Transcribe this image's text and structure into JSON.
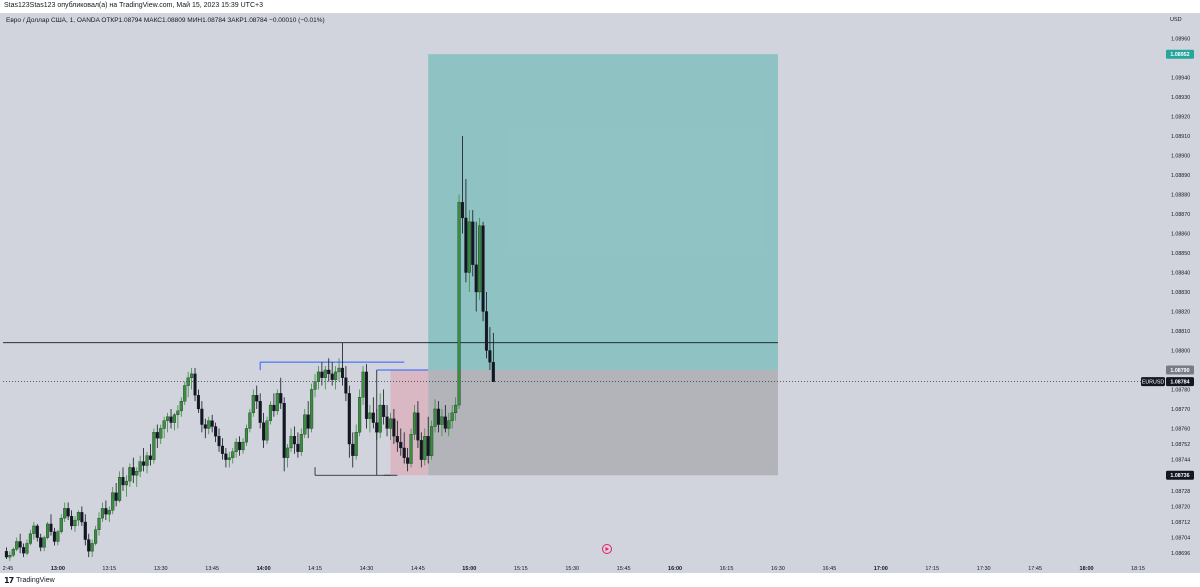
{
  "header": {
    "published_text": "Stas123Stas123 опубликовал(а) на TradingView.com, Май 15, 2023 15:39 UTC+3"
  },
  "symbol_info": {
    "text": "Евро / Доллар США, 1, OANDA  ОТКР1.08794  МАКС1.08809  МИН1.08784  ЗАКР1.08784  −0.00010 (−0.01%)"
  },
  "price_scale": {
    "currency": "USD",
    "ticks": [
      "1.08960",
      "1.08952",
      "1.08940",
      "1.08930",
      "1.08920",
      "1.08910",
      "1.08900",
      "1.08890",
      "1.08880",
      "1.08870",
      "1.08860",
      "1.08850",
      "1.08840",
      "1.08830",
      "1.08820",
      "1.08810",
      "1.08800",
      "1.08790",
      "1.08780",
      "1.08770",
      "1.08760",
      "1.08752",
      "1.08744",
      "1.08736",
      "1.08728",
      "1.08720",
      "1.08712",
      "1.08704",
      "1.08696"
    ],
    "badges": {
      "target": {
        "label": "1.08952",
        "color": "#26a69a"
      },
      "entry": {
        "label": "1.08790",
        "color": "#787b86"
      },
      "current": {
        "symbol": "EURUSD",
        "label": "1.08784",
        "color": "#131722"
      },
      "stop": {
        "label": "1.08736",
        "color": "#131722"
      }
    }
  },
  "time_axis": {
    "labels": [
      "2:45",
      "13:00",
      "13:15",
      "13:30",
      "13:45",
      "14:00",
      "14:15",
      "14:30",
      "14:45",
      "15:00",
      "15:15",
      "15:30",
      "15:45",
      "16:00",
      "16:15",
      "16:30",
      "16:45",
      "17:00",
      "17:15",
      "17:30",
      "17:45",
      "18:00",
      "18:15"
    ],
    "bold_labels": [
      "13:00",
      "14:00",
      "15:00",
      "16:00",
      "17:00",
      "18:00"
    ]
  },
  "footer": {
    "logo_mark": "17",
    "brand": "TradingView"
  },
  "colors": {
    "background": "#d1d4dc",
    "bull": "#388e3c",
    "bear": "#131722",
    "target_zone": "#26a69a",
    "stop_zone": "#808080",
    "entry_zone": "#e0a0b0",
    "level_line": "#2962ff"
  },
  "chart_data": {
    "type": "candlestick",
    "symbol": "EURUSD",
    "timeframe": "1",
    "ylim": [
      1.08692,
      1.08968
    ],
    "x_range": [
      "12:44",
      "18:22"
    ],
    "series": [
      {
        "open": 1.08697,
        "high": 1.08699,
        "low": 1.08693,
        "close": 1.08694
      },
      {
        "open": 1.08694,
        "high": 1.08697,
        "low": 1.08692,
        "close": 1.08695
      },
      {
        "open": 1.08695,
        "high": 1.08699,
        "low": 1.08694,
        "close": 1.08698
      },
      {
        "open": 1.08698,
        "high": 1.08704,
        "low": 1.08697,
        "close": 1.08702
      },
      {
        "open": 1.08702,
        "high": 1.08706,
        "low": 1.08696,
        "close": 1.08699
      },
      {
        "open": 1.08699,
        "high": 1.08701,
        "low": 1.08694,
        "close": 1.08696
      },
      {
        "open": 1.08696,
        "high": 1.08703,
        "low": 1.08695,
        "close": 1.08701
      },
      {
        "open": 1.08701,
        "high": 1.08708,
        "low": 1.087,
        "close": 1.08706
      },
      {
        "open": 1.08706,
        "high": 1.08712,
        "low": 1.08703,
        "close": 1.0871
      },
      {
        "open": 1.0871,
        "high": 1.08711,
        "low": 1.08702,
        "close": 1.08704
      },
      {
        "open": 1.08704,
        "high": 1.08706,
        "low": 1.08697,
        "close": 1.08699
      },
      {
        "open": 1.08699,
        "high": 1.08705,
        "low": 1.08697,
        "close": 1.08704
      },
      {
        "open": 1.08704,
        "high": 1.08712,
        "low": 1.08703,
        "close": 1.08711
      },
      {
        "open": 1.08711,
        "high": 1.08716,
        "low": 1.08705,
        "close": 1.08707
      },
      {
        "open": 1.08707,
        "high": 1.08709,
        "low": 1.087,
        "close": 1.08702
      },
      {
        "open": 1.08702,
        "high": 1.08708,
        "low": 1.087,
        "close": 1.08707
      },
      {
        "open": 1.08707,
        "high": 1.08716,
        "low": 1.08706,
        "close": 1.08714
      },
      {
        "open": 1.08714,
        "high": 1.08722,
        "low": 1.08712,
        "close": 1.08719
      },
      {
        "open": 1.08719,
        "high": 1.08722,
        "low": 1.08713,
        "close": 1.08715
      },
      {
        "open": 1.08715,
        "high": 1.08718,
        "low": 1.08708,
        "close": 1.0871
      },
      {
        "open": 1.0871,
        "high": 1.08715,
        "low": 1.08707,
        "close": 1.08713
      },
      {
        "open": 1.08713,
        "high": 1.08718,
        "low": 1.0871,
        "close": 1.08717
      },
      {
        "open": 1.08717,
        "high": 1.0872,
        "low": 1.0871,
        "close": 1.08712
      },
      {
        "open": 1.08712,
        "high": 1.08716,
        "low": 1.087,
        "close": 1.08703
      },
      {
        "open": 1.08703,
        "high": 1.08706,
        "low": 1.08694,
        "close": 1.08697
      },
      {
        "open": 1.08697,
        "high": 1.08703,
        "low": 1.08694,
        "close": 1.08701
      },
      {
        "open": 1.08701,
        "high": 1.0871,
        "low": 1.087,
        "close": 1.08708
      },
      {
        "open": 1.08708,
        "high": 1.08717,
        "low": 1.08705,
        "close": 1.08714
      },
      {
        "open": 1.08714,
        "high": 1.08722,
        "low": 1.08712,
        "close": 1.08719
      },
      {
        "open": 1.08719,
        "high": 1.08723,
        "low": 1.08713,
        "close": 1.08716
      },
      {
        "open": 1.08716,
        "high": 1.0872,
        "low": 1.08712,
        "close": 1.08718
      },
      {
        "open": 1.08718,
        "high": 1.0873,
        "low": 1.08716,
        "close": 1.08727
      },
      {
        "open": 1.08727,
        "high": 1.08732,
        "low": 1.0872,
        "close": 1.08723
      },
      {
        "open": 1.08723,
        "high": 1.08738,
        "low": 1.08722,
        "close": 1.08735
      },
      {
        "open": 1.08735,
        "high": 1.0874,
        "low": 1.08728,
        "close": 1.08731
      },
      {
        "open": 1.08731,
        "high": 1.08736,
        "low": 1.08725,
        "close": 1.08733
      },
      {
        "open": 1.08733,
        "high": 1.08742,
        "low": 1.0873,
        "close": 1.0874
      },
      {
        "open": 1.0874,
        "high": 1.08745,
        "low": 1.08732,
        "close": 1.08736
      },
      {
        "open": 1.08736,
        "high": 1.0874,
        "low": 1.0873,
        "close": 1.08738
      },
      {
        "open": 1.08738,
        "high": 1.08746,
        "low": 1.08735,
        "close": 1.08743
      },
      {
        "open": 1.08743,
        "high": 1.0875,
        "low": 1.08738,
        "close": 1.08741
      },
      {
        "open": 1.08741,
        "high": 1.08748,
        "low": 1.08737,
        "close": 1.08746
      },
      {
        "open": 1.08746,
        "high": 1.08752,
        "low": 1.08741,
        "close": 1.08744
      },
      {
        "open": 1.08744,
        "high": 1.0876,
        "low": 1.08742,
        "close": 1.08758
      },
      {
        "open": 1.08758,
        "high": 1.08762,
        "low": 1.0875,
        "close": 1.08755
      },
      {
        "open": 1.08755,
        "high": 1.08762,
        "low": 1.08752,
        "close": 1.0876
      },
      {
        "open": 1.0876,
        "high": 1.08766,
        "low": 1.08755,
        "close": 1.08764
      },
      {
        "open": 1.08764,
        "high": 1.08768,
        "low": 1.08758,
        "close": 1.08766
      },
      {
        "open": 1.08766,
        "high": 1.0877,
        "low": 1.0876,
        "close": 1.08763
      },
      {
        "open": 1.08763,
        "high": 1.08768,
        "low": 1.08759,
        "close": 1.08767
      },
      {
        "open": 1.08767,
        "high": 1.08772,
        "low": 1.0876,
        "close": 1.08769
      },
      {
        "open": 1.08769,
        "high": 1.08776,
        "low": 1.08766,
        "close": 1.08774
      },
      {
        "open": 1.08774,
        "high": 1.08784,
        "low": 1.08772,
        "close": 1.08782
      },
      {
        "open": 1.08782,
        "high": 1.08789,
        "low": 1.08776,
        "close": 1.08786
      },
      {
        "open": 1.08786,
        "high": 1.08791,
        "low": 1.0878,
        "close": 1.08788
      },
      {
        "open": 1.08788,
        "high": 1.08791,
        "low": 1.08774,
        "close": 1.08777
      },
      {
        "open": 1.08777,
        "high": 1.0878,
        "low": 1.08768,
        "close": 1.0877
      },
      {
        "open": 1.0877,
        "high": 1.08774,
        "low": 1.08758,
        "close": 1.08762
      },
      {
        "open": 1.08762,
        "high": 1.08765,
        "low": 1.08755,
        "close": 1.0876
      },
      {
        "open": 1.0876,
        "high": 1.08766,
        "low": 1.08757,
        "close": 1.08764
      },
      {
        "open": 1.08764,
        "high": 1.08767,
        "low": 1.08758,
        "close": 1.08761
      },
      {
        "open": 1.08761,
        "high": 1.08763,
        "low": 1.08753,
        "close": 1.08756
      },
      {
        "open": 1.08756,
        "high": 1.0876,
        "low": 1.08748,
        "close": 1.08751
      },
      {
        "open": 1.08751,
        "high": 1.08755,
        "low": 1.08744,
        "close": 1.08747
      },
      {
        "open": 1.08747,
        "high": 1.0875,
        "low": 1.0874,
        "close": 1.08744
      },
      {
        "open": 1.08744,
        "high": 1.08748,
        "low": 1.0874,
        "close": 1.08745
      },
      {
        "open": 1.08745,
        "high": 1.0875,
        "low": 1.08742,
        "close": 1.08748
      },
      {
        "open": 1.08748,
        "high": 1.08755,
        "low": 1.08745,
        "close": 1.08753
      },
      {
        "open": 1.08753,
        "high": 1.08756,
        "low": 1.08746,
        "close": 1.08749
      },
      {
        "open": 1.08749,
        "high": 1.08755,
        "low": 1.08747,
        "close": 1.08753
      },
      {
        "open": 1.08753,
        "high": 1.08762,
        "low": 1.08751,
        "close": 1.0876
      },
      {
        "open": 1.0876,
        "high": 1.0877,
        "low": 1.08758,
        "close": 1.08768
      },
      {
        "open": 1.08768,
        "high": 1.0878,
        "low": 1.08766,
        "close": 1.08777
      },
      {
        "open": 1.08777,
        "high": 1.08782,
        "low": 1.0877,
        "close": 1.08774
      },
      {
        "open": 1.08774,
        "high": 1.08778,
        "low": 1.0876,
        "close": 1.08763
      },
      {
        "open": 1.08763,
        "high": 1.08768,
        "low": 1.0875,
        "close": 1.08754
      },
      {
        "open": 1.08754,
        "high": 1.08766,
        "low": 1.08752,
        "close": 1.08764
      },
      {
        "open": 1.08764,
        "high": 1.08774,
        "low": 1.08762,
        "close": 1.08772
      },
      {
        "open": 1.08772,
        "high": 1.08778,
        "low": 1.08766,
        "close": 1.08769
      },
      {
        "open": 1.08769,
        "high": 1.0878,
        "low": 1.08767,
        "close": 1.08778
      },
      {
        "open": 1.08778,
        "high": 1.08786,
        "low": 1.0877,
        "close": 1.08773
      },
      {
        "open": 1.08773,
        "high": 1.08776,
        "low": 1.08738,
        "close": 1.08745
      },
      {
        "open": 1.08745,
        "high": 1.08752,
        "low": 1.0874,
        "close": 1.0875
      },
      {
        "open": 1.0875,
        "high": 1.0876,
        "low": 1.08748,
        "close": 1.08756
      },
      {
        "open": 1.08756,
        "high": 1.08761,
        "low": 1.08747,
        "close": 1.08752
      },
      {
        "open": 1.08752,
        "high": 1.08758,
        "low": 1.08745,
        "close": 1.08748
      },
      {
        "open": 1.08748,
        "high": 1.0876,
        "low": 1.08746,
        "close": 1.08757
      },
      {
        "open": 1.08757,
        "high": 1.0877,
        "low": 1.08755,
        "close": 1.08767
      },
      {
        "open": 1.08767,
        "high": 1.08774,
        "low": 1.08755,
        "close": 1.0876
      },
      {
        "open": 1.0876,
        "high": 1.08783,
        "low": 1.08758,
        "close": 1.0878
      },
      {
        "open": 1.0878,
        "high": 1.08788,
        "low": 1.08776,
        "close": 1.08784
      },
      {
        "open": 1.08784,
        "high": 1.08792,
        "low": 1.0878,
        "close": 1.08789
      },
      {
        "open": 1.08789,
        "high": 1.08794,
        "low": 1.08782,
        "close": 1.08786
      },
      {
        "open": 1.08786,
        "high": 1.08792,
        "low": 1.0878,
        "close": 1.0879
      },
      {
        "open": 1.0879,
        "high": 1.08796,
        "low": 1.08784,
        "close": 1.08788
      },
      {
        "open": 1.08788,
        "high": 1.08794,
        "low": 1.08782,
        "close": 1.08785
      },
      {
        "open": 1.08785,
        "high": 1.08792,
        "low": 1.0878,
        "close": 1.08789
      },
      {
        "open": 1.08789,
        "high": 1.08796,
        "low": 1.08784,
        "close": 1.08791
      },
      {
        "open": 1.08791,
        "high": 1.08804,
        "low": 1.08782,
        "close": 1.08786
      },
      {
        "open": 1.08786,
        "high": 1.08792,
        "low": 1.08774,
        "close": 1.08778
      },
      {
        "open": 1.08778,
        "high": 1.08782,
        "low": 1.08745,
        "close": 1.08752
      },
      {
        "open": 1.08752,
        "high": 1.08758,
        "low": 1.0874,
        "close": 1.08746
      },
      {
        "open": 1.08746,
        "high": 1.08762,
        "low": 1.08744,
        "close": 1.08758
      },
      {
        "open": 1.08758,
        "high": 1.0878,
        "low": 1.08756,
        "close": 1.08776
      },
      {
        "open": 1.08776,
        "high": 1.08792,
        "low": 1.08772,
        "close": 1.08789
      },
      {
        "open": 1.08789,
        "high": 1.08793,
        "low": 1.0876,
        "close": 1.08765
      },
      {
        "open": 1.08765,
        "high": 1.08772,
        "low": 1.08758,
        "close": 1.08768
      },
      {
        "open": 1.08768,
        "high": 1.08776,
        "low": 1.0876,
        "close": 1.08763
      },
      {
        "open": 1.08763,
        "high": 1.0877,
        "low": 1.08754,
        "close": 1.08758
      },
      {
        "open": 1.08758,
        "high": 1.08778,
        "low": 1.08755,
        "close": 1.08772
      },
      {
        "open": 1.08772,
        "high": 1.0878,
        "low": 1.08762,
        "close": 1.08766
      },
      {
        "open": 1.08766,
        "high": 1.08772,
        "low": 1.08756,
        "close": 1.0876
      },
      {
        "open": 1.0876,
        "high": 1.08768,
        "low": 1.08754,
        "close": 1.08765
      },
      {
        "open": 1.08765,
        "high": 1.0877,
        "low": 1.08752,
        "close": 1.08756
      },
      {
        "open": 1.08756,
        "high": 1.08764,
        "low": 1.08748,
        "close": 1.08753
      },
      {
        "open": 1.08753,
        "high": 1.0876,
        "low": 1.08746,
        "close": 1.0875
      },
      {
        "open": 1.0875,
        "high": 1.08758,
        "low": 1.08742,
        "close": 1.08745
      },
      {
        "open": 1.08745,
        "high": 1.0875,
        "low": 1.08738,
        "close": 1.08742
      },
      {
        "open": 1.08742,
        "high": 1.0876,
        "low": 1.0874,
        "close": 1.08757
      },
      {
        "open": 1.08757,
        "high": 1.08772,
        "low": 1.08754,
        "close": 1.08768
      },
      {
        "open": 1.08768,
        "high": 1.08774,
        "low": 1.0875,
        "close": 1.08754
      },
      {
        "open": 1.08754,
        "high": 1.08758,
        "low": 1.0874,
        "close": 1.08744
      },
      {
        "open": 1.08744,
        "high": 1.0876,
        "low": 1.08741,
        "close": 1.08756
      },
      {
        "open": 1.08756,
        "high": 1.08766,
        "low": 1.08742,
        "close": 1.08746
      },
      {
        "open": 1.08746,
        "high": 1.08764,
        "low": 1.08744,
        "close": 1.08761
      },
      {
        "open": 1.08761,
        "high": 1.08775,
        "low": 1.08758,
        "close": 1.0877
      },
      {
        "open": 1.0877,
        "high": 1.08774,
        "low": 1.08758,
        "close": 1.08762
      },
      {
        "open": 1.08762,
        "high": 1.0877,
        "low": 1.08756,
        "close": 1.08766
      },
      {
        "open": 1.08766,
        "high": 1.08772,
        "low": 1.08758,
        "close": 1.0876
      },
      {
        "open": 1.0876,
        "high": 1.08768,
        "low": 1.08756,
        "close": 1.08764
      },
      {
        "open": 1.08764,
        "high": 1.08772,
        "low": 1.0876,
        "close": 1.08768
      },
      {
        "open": 1.08768,
        "high": 1.08776,
        "low": 1.08764,
        "close": 1.08772
      },
      {
        "open": 1.08772,
        "high": 1.0888,
        "low": 1.0877,
        "close": 1.08876
      },
      {
        "open": 1.08876,
        "high": 1.0891,
        "low": 1.0886,
        "close": 1.08868
      },
      {
        "open": 1.08868,
        "high": 1.08888,
        "low": 1.08835,
        "close": 1.0884
      },
      {
        "open": 1.0884,
        "high": 1.08872,
        "low": 1.0883,
        "close": 1.08866
      },
      {
        "open": 1.08866,
        "high": 1.08872,
        "low": 1.08838,
        "close": 1.08844
      },
      {
        "open": 1.08844,
        "high": 1.08866,
        "low": 1.0882,
        "close": 1.0883
      },
      {
        "open": 1.0883,
        "high": 1.08868,
        "low": 1.08826,
        "close": 1.08864
      },
      {
        "open": 1.08864,
        "high": 1.08866,
        "low": 1.08815,
        "close": 1.0882
      },
      {
        "open": 1.0882,
        "high": 1.0883,
        "low": 1.08796,
        "close": 1.088
      },
      {
        "open": 1.088,
        "high": 1.08812,
        "low": 1.0879,
        "close": 1.08794
      },
      {
        "open": 1.08794,
        "high": 1.08809,
        "low": 1.08784,
        "close": 1.08784
      }
    ],
    "drawings": {
      "target_zone": {
        "from": "14:48",
        "to": "16:30",
        "top": 1.08952,
        "bottom": 1.0879
      },
      "stop_zone": {
        "from": "14:48",
        "to": "16:30",
        "top": 1.0879,
        "bottom": 1.08736
      },
      "pink_zone": {
        "from": "14:37",
        "to": "14:48",
        "top": 1.0879,
        "bottom": 1.08736
      },
      "horizontal_line": {
        "price": 1.08804,
        "from": "12:44",
        "to": "16:30"
      },
      "blue_level_1": {
        "price": 1.08794,
        "from": "13:59",
        "to": "14:41"
      },
      "blue_level_2": {
        "price": 1.0879,
        "from": "14:33",
        "to": "14:48"
      },
      "low_line": {
        "price": 1.08736,
        "from": "14:15",
        "to": "14:37"
      },
      "low_line_2": {
        "price": 1.08736,
        "from": "14:35",
        "to": "14:39"
      },
      "last_price_line": {
        "price": 1.08784
      }
    }
  }
}
